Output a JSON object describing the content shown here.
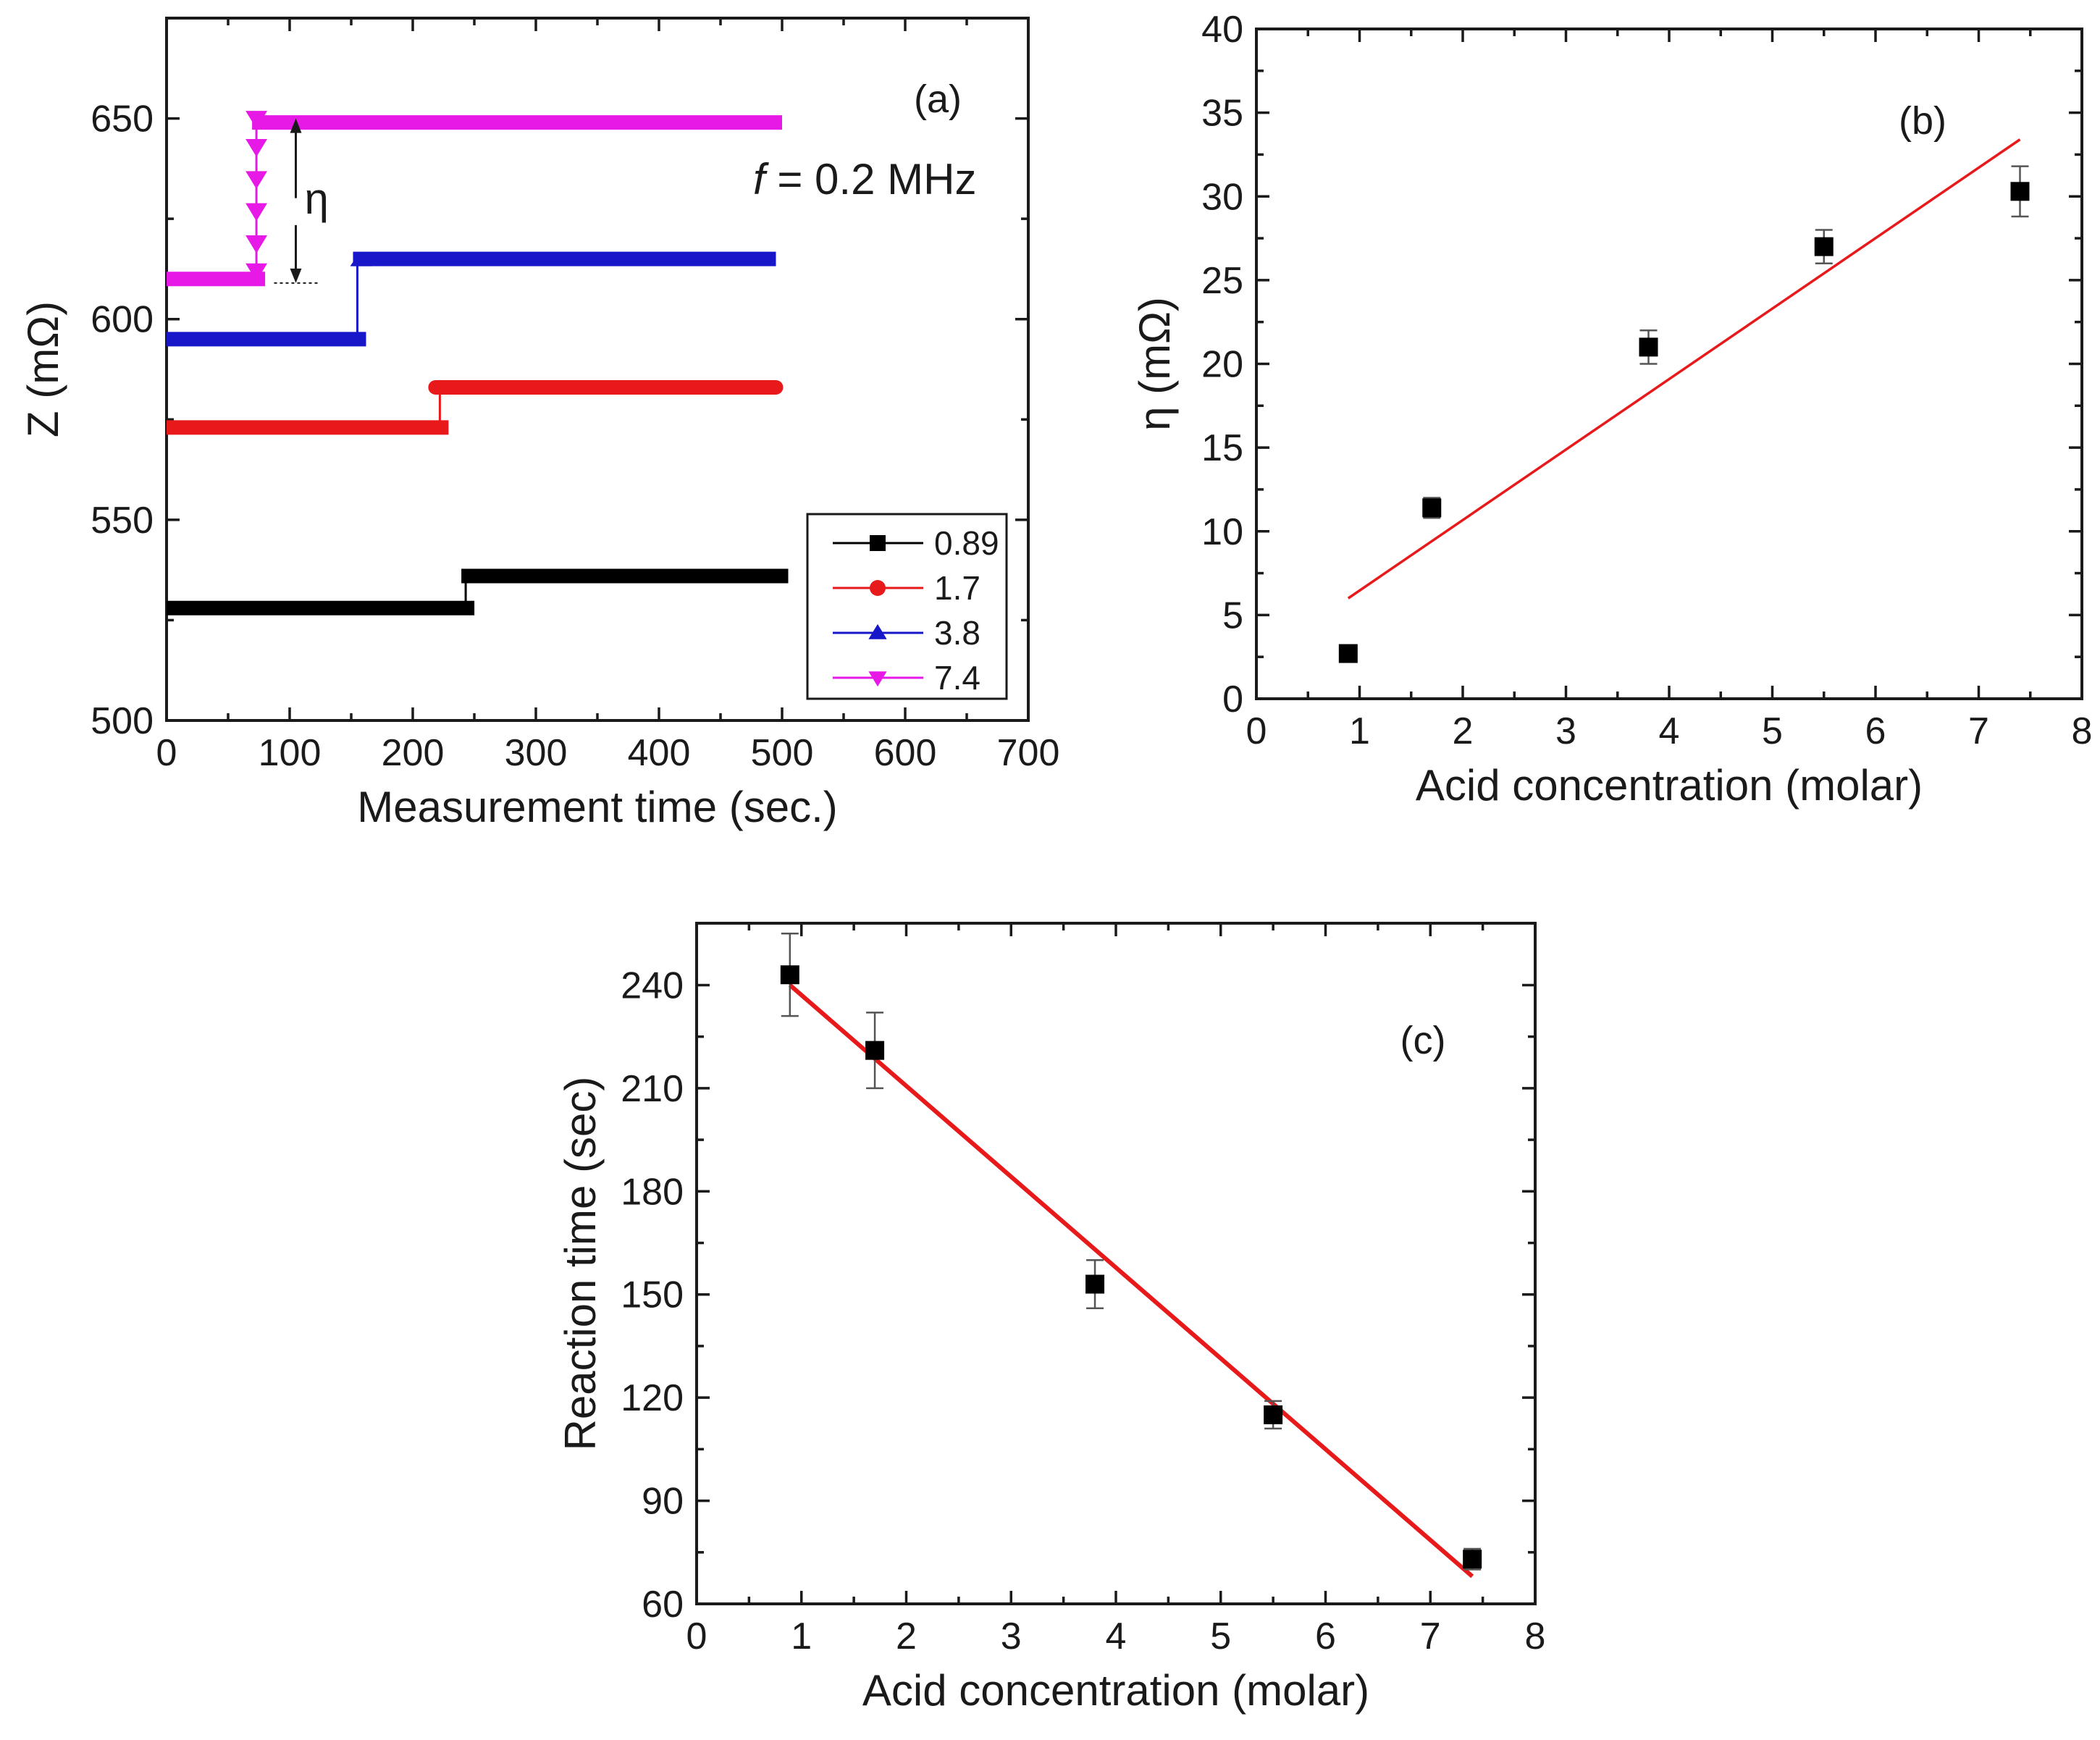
{
  "chart_data": [
    {
      "id": "a",
      "type": "line",
      "panel_label": "(a)",
      "title": "",
      "xlabel": "Measurement time (sec.)",
      "ylabel": "Z (mΩ)",
      "xlim": [
        0,
        700
      ],
      "ylim": [
        500,
        675
      ],
      "xticks": [
        0,
        100,
        200,
        300,
        400,
        500,
        600,
        700
      ],
      "yticks": [
        500,
        550,
        600,
        650
      ],
      "annotations": {
        "frequency_italic": "f",
        "frequency_rest": " = 0.2 MHz",
        "eta": "η",
        "eta_range": [
          609,
          650
        ],
        "eta_x": 105
      },
      "legend": {
        "placement": "bottom-right",
        "entries": [
          "0.89",
          "1.7",
          "3.8",
          "7.4"
        ]
      },
      "series": [
        {
          "name": "0.89",
          "color": "#000000",
          "marker": "square",
          "step_x": 243,
          "x_end": 505,
          "y_before": 528,
          "y_after": 536
        },
        {
          "name": "1.7",
          "color": "#e8191b",
          "marker": "circle",
          "step_x": 222,
          "x_end": 495,
          "y_before": 573,
          "y_after": 583
        },
        {
          "name": "3.8",
          "color": "#1717c9",
          "marker": "triangle-up",
          "step_x": 155,
          "x_end": 495,
          "y_before": 595,
          "y_after": 615
        },
        {
          "name": "7.4",
          "color": "#e619e6",
          "marker": "triangle-down",
          "step_x": 73,
          "x_end": 500,
          "y_before": 610,
          "y_after": 649,
          "transition_points": [
            650,
            643,
            635,
            627,
            619,
            612
          ]
        }
      ]
    },
    {
      "id": "b",
      "type": "scatter",
      "panel_label": "(b)",
      "title": "",
      "xlabel": "Acid concentration (molar)",
      "ylabel": "η (mΩ)",
      "xlim": [
        0,
        8
      ],
      "ylim": [
        0,
        40
      ],
      "xticks": [
        0,
        1,
        2,
        3,
        4,
        5,
        6,
        7,
        8
      ],
      "yticks": [
        0,
        5,
        10,
        15,
        20,
        25,
        30,
        35,
        40
      ],
      "x": [
        0.89,
        1.7,
        3.8,
        5.5,
        7.4
      ],
      "y": [
        2.7,
        11.4,
        21.0,
        27.0,
        30.3
      ],
      "yerr": [
        0,
        0.6,
        1.0,
        1.0,
        1.5
      ],
      "fit": {
        "x": [
          0.89,
          7.4
        ],
        "y": [
          6.0,
          33.4
        ],
        "color": "#e8191b"
      },
      "marker_color": "#000000"
    },
    {
      "id": "c",
      "type": "scatter",
      "panel_label": "(c)",
      "title": "",
      "xlabel": "Acid concentration (molar)",
      "ylabel": "Reaction time (sec)",
      "xlim": [
        0,
        8
      ],
      "ylim": [
        60,
        258
      ],
      "xticks": [
        0,
        1,
        2,
        3,
        4,
        5,
        6,
        7,
        8
      ],
      "yticks": [
        60,
        90,
        120,
        150,
        180,
        210,
        240
      ],
      "x": [
        0.89,
        1.7,
        3.8,
        5.5,
        7.4
      ],
      "y": [
        243,
        221,
        153,
        115,
        73
      ],
      "yerr": [
        12,
        11,
        7,
        4,
        3
      ],
      "fit": {
        "x": [
          0.89,
          7.4
        ],
        "y": [
          240,
          68
        ],
        "color": "#e8191b"
      },
      "marker_color": "#000000"
    }
  ]
}
